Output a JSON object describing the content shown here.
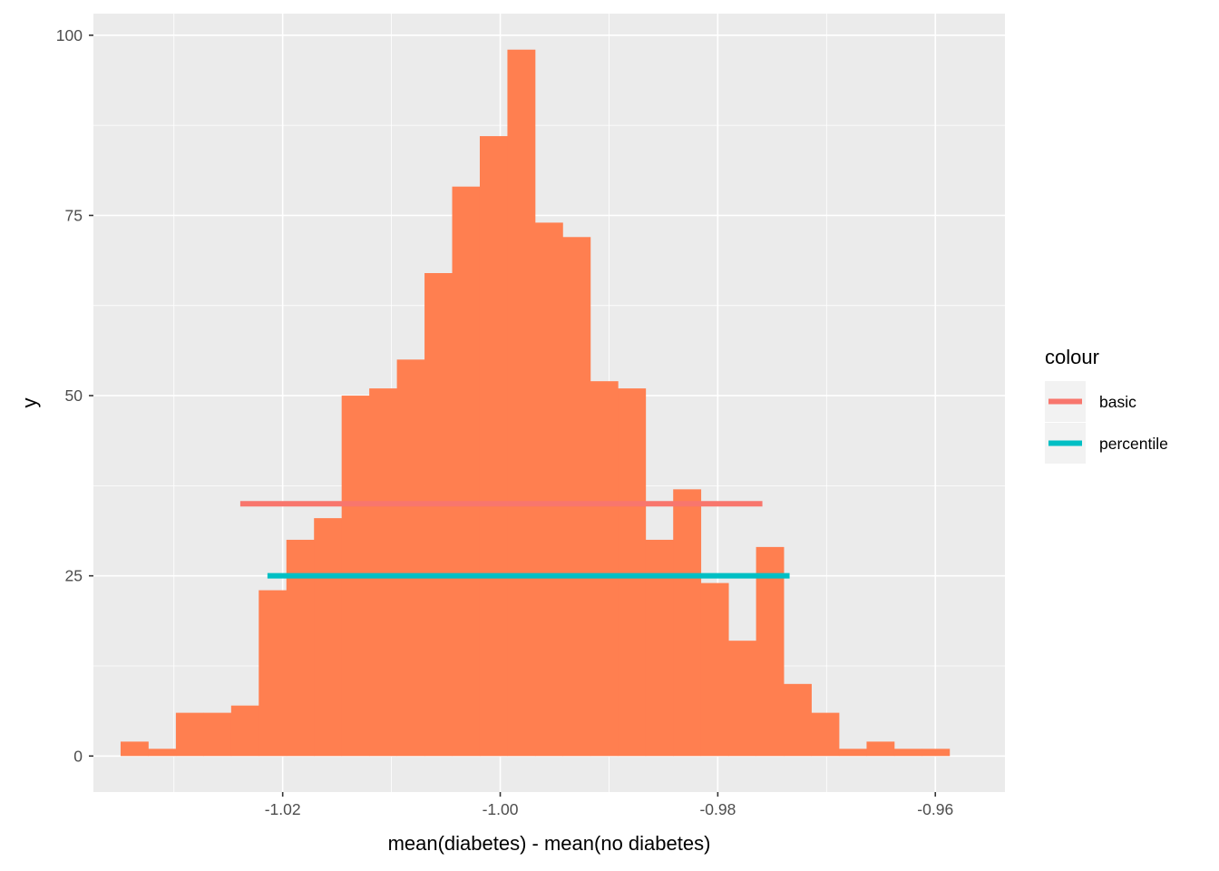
{
  "chart_data": {
    "type": "bar",
    "subtype": "histogram",
    "xlabel": "mean(diabetes) - mean(no diabetes)",
    "ylabel": "y",
    "xlim": [
      -1.0374,
      -0.9536
    ],
    "ylim": [
      -5,
      103
    ],
    "x_ticks": [
      -1.02,
      -1.0,
      -0.98,
      -0.96
    ],
    "x_tick_labels": [
      "-1.02",
      "-1.00",
      "-0.98",
      "-0.96"
    ],
    "y_ticks": [
      0,
      25,
      50,
      75,
      100
    ],
    "y_tick_labels": [
      "0",
      "25",
      "50",
      "75",
      "100"
    ],
    "grid": true,
    "panel_background": "#ebebeb",
    "bar_color": "#ff7f50",
    "bins": {
      "start": -1.0349,
      "width": 0.00254,
      "counts": [
        2,
        1,
        6,
        6,
        7,
        23,
        30,
        33,
        50,
        51,
        55,
        67,
        79,
        86,
        98,
        74,
        72,
        52,
        51,
        30,
        37,
        24,
        16,
        29,
        10,
        6,
        1,
        2,
        1,
        1
      ]
    },
    "segments": [
      {
        "name": "basic",
        "x_start": -1.0239,
        "x_end": -0.9759,
        "y": 35,
        "color": "#f8766d"
      },
      {
        "name": "percentile",
        "x_start": -1.0214,
        "x_end": -0.9734,
        "y": 25,
        "color": "#00bfc4"
      }
    ],
    "legend": {
      "title": "colour",
      "placement": "right",
      "entries": [
        "basic",
        "percentile"
      ]
    }
  }
}
